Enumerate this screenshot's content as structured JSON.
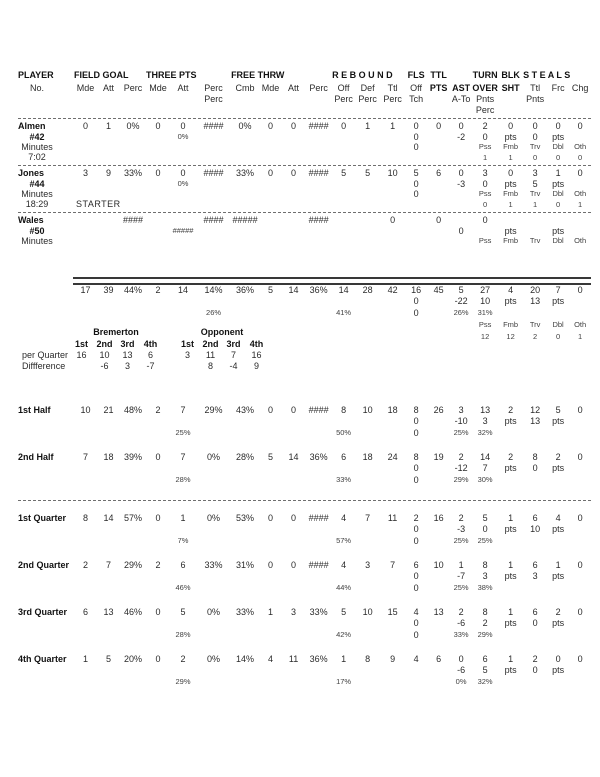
{
  "page": {
    "background": "#ffffff",
    "ink": "#2b2b2b"
  },
  "header": {
    "h1": [
      "PLAYER",
      "FIELD GOAL",
      "THREE PTS",
      "FREE THRW",
      "R E B O U N D",
      "FLS",
      "TTL",
      "",
      "TURN",
      "BLK",
      "S T E A L S"
    ]
  },
  "rows": [
    {
      "n": "header-line-2",
      "h": 12,
      "b": [
        "pts",
        "ast",
        "to",
        "blk"
      ],
      "c": {
        "label": "No.",
        "fgm": "Mde",
        "fga": "Att",
        "fgp": "Perc",
        "tpm": "Mde",
        "tpa": "Att",
        "tpp": "Perc",
        "cmb": "Cmb",
        "ftm": "Mde",
        "fta": "Att",
        "ftp": "Perc",
        "rbo": "Off",
        "rbd": "Def",
        "rbt": "Ttl",
        "fls": "Off",
        "pts": "PTS",
        "ast": "AST",
        "to": "OVER",
        "blk": "SHT",
        "st": "Ttl",
        "fr": "Frc",
        "ch": "Chg"
      }
    },
    {
      "n": "header-line-3",
      "h": 11,
      "c": {
        "tpp": "Perc",
        "rbo": "Perc",
        "rbd": "Perc",
        "rbt": "Perc",
        "fls": "Tch",
        "ast": "A-To",
        "to": "Pnts",
        "st": "Pnts"
      }
    },
    {
      "n": "header-line-4",
      "h": 11,
      "c": {
        "to": "Perc"
      }
    },
    {
      "sep": "dashed",
      "n": "divider-header"
    },
    {
      "n": "almen-line-1",
      "h": 11,
      "lb": 1,
      "lleft": 1,
      "c": {
        "label": "Almen",
        "fgm": "0",
        "fga": "1",
        "fgp": "0%",
        "tpm": "0",
        "tpa": "0",
        "tpp": "####",
        "cmb": "0%",
        "ftm": "0",
        "fta": "0",
        "ftp": "####",
        "rbo": "0",
        "rbd": "1",
        "rbt": "1",
        "fls": "0",
        "pts": "0",
        "ast": "0",
        "to": "2",
        "blk": "0",
        "st": "0",
        "fr": "0",
        "ch": "0"
      }
    },
    {
      "n": "almen-line-2",
      "h": 10,
      "lb": 1,
      "s": [
        "tpa"
      ],
      "c": {
        "label": "#42",
        "tpa": "0%",
        "fls": "0",
        "ast": "-2",
        "to": "0",
        "blk": "pts",
        "st": "0",
        "fr": "pts"
      }
    },
    {
      "n": "almen-line-3",
      "h": 10,
      "s": [
        "to",
        "blk",
        "st",
        "fr",
        "ch"
      ],
      "c": {
        "label": "Minutes",
        "fls": "0",
        "to": "Pss",
        "blk": "Fmb",
        "st": "Trv",
        "fr": "Dbl",
        "ch": "Oth"
      }
    },
    {
      "n": "almen-line-4",
      "h": 11,
      "s": [
        "to",
        "blk",
        "st",
        "fr",
        "ch"
      ],
      "c": {
        "label": "7:02",
        "to": "1",
        "blk": "1",
        "st": "0",
        "fr": "0",
        "ch": "0"
      }
    },
    {
      "sep": "dashed",
      "n": "divider-almen"
    },
    {
      "n": "jones-line-1",
      "h": 11,
      "lb": 1,
      "lleft": 1,
      "c": {
        "label": "Jones",
        "fgm": "3",
        "fga": "9",
        "fgp": "33%",
        "tpm": "0",
        "tpa": "0",
        "tpp": "####",
        "cmb": "33%",
        "ftm": "0",
        "fta": "0",
        "ftp": "####",
        "rbo": "5",
        "rbd": "5",
        "rbt": "10",
        "fls": "5",
        "pts": "6",
        "ast": "0",
        "to": "3",
        "blk": "0",
        "st": "3",
        "fr": "1",
        "ch": "0"
      }
    },
    {
      "n": "jones-line-2",
      "h": 10,
      "lb": 1,
      "s": [
        "tpa"
      ],
      "c": {
        "label": "#44",
        "tpa": "0%",
        "fls": "0",
        "ast": "-3",
        "to": "0",
        "blk": "pts",
        "st": "5",
        "fr": "pts"
      }
    },
    {
      "n": "jones-line-3",
      "h": 10,
      "s": [
        "to",
        "blk",
        "st",
        "fr",
        "ch"
      ],
      "c": {
        "label": "Minutes",
        "fls": "0",
        "to": "Pss",
        "blk": "Fmb",
        "st": "Trv",
        "fr": "Dbl",
        "ch": "Oth"
      }
    },
    {
      "n": "jones-line-4",
      "h": 11,
      "ln": [
        "fgm"
      ],
      "s": [
        "to",
        "blk",
        "st",
        "fr",
        "ch"
      ],
      "c": {
        "label": "18:29",
        "fgm": "STARTER",
        "to": "0",
        "blk": "1",
        "st": "1",
        "fr": "0",
        "ch": "1"
      }
    },
    {
      "sep": "dashed",
      "n": "divider-jones"
    },
    {
      "n": "wales-line-1",
      "h": 11,
      "lb": 1,
      "lleft": 1,
      "c": {
        "label": "Wales",
        "fgp": "####",
        "tpp": "####",
        "cmb": "#####",
        "ftp": "####",
        "rbt": "0",
        "pts": "0",
        "to": "0"
      }
    },
    {
      "n": "wales-line-2",
      "h": 10,
      "lb": 1,
      "s": [
        "tpa"
      ],
      "c": {
        "label": "#50",
        "tpa": "#####",
        "ast": "0",
        "blk": "pts",
        "fr": "pts"
      }
    },
    {
      "n": "wales-line-3",
      "h": 10,
      "s": [
        "to",
        "blk",
        "st",
        "fr",
        "ch"
      ],
      "c": {
        "label": "Minutes",
        "to": "Pss",
        "blk": "Fmb",
        "st": "Trv",
        "fr": "Dbl",
        "ch": "Oth"
      }
    },
    {
      "n": "wales-line-4",
      "h": 11,
      "c": {}
    },
    {
      "gap": 20,
      "n": "spacer-before-totals"
    },
    {
      "sep": "double",
      "n": "divider-totals"
    },
    {
      "n": "totals-line-1",
      "h": 11,
      "c": {
        "fgm": "17",
        "fga": "39",
        "fgp": "44%",
        "tpm": "2",
        "tpa": "14",
        "tpp": "14%",
        "cmb": "36%",
        "ftm": "5",
        "fta": "14",
        "ftp": "36%",
        "rbo": "14",
        "rbd": "28",
        "rbt": "42",
        "fls": "16",
        "pts": "45",
        "ast": "5",
        "to": "27",
        "blk": "4",
        "st": "20",
        "fr": "7",
        "ch": "0"
      }
    },
    {
      "n": "totals-line-2",
      "h": 11,
      "c": {
        "fls": "0",
        "ast": "-22",
        "to": "10",
        "blk": "pts",
        "st": "13",
        "fr": "pts"
      }
    },
    {
      "n": "totals-line-3",
      "h": 12,
      "s": [
        "tpp",
        "rbo",
        "ast",
        "to"
      ],
      "c": {
        "tpp": "26%",
        "rbo": "41%",
        "fls": "0",
        "ast": "26%",
        "to": "31%"
      }
    },
    {
      "n": "totals-line-4",
      "h": 12,
      "s": [
        "to",
        "blk",
        "st",
        "fr",
        "ch"
      ],
      "c": {
        "to": "Pss",
        "blk": "Fmb",
        "st": "Trv",
        "fr": "Dbl",
        "ch": "Oth"
      }
    },
    {
      "n": "totals-line-5",
      "h": 11,
      "s": [
        "to",
        "blk",
        "st",
        "fr",
        "ch"
      ],
      "c": {
        "to": "12",
        "blk": "12",
        "st": "2",
        "fr": "0",
        "ch": "1"
      }
    },
    {
      "gap": 63,
      "n": "spacer-quarter-scores"
    },
    {
      "n": "first-half-line-1",
      "h": 11,
      "lb": 1,
      "lleft": 1,
      "c": {
        "label": "1st Half",
        "fgm": "10",
        "fga": "21",
        "fgp": "48%",
        "tpm": "2",
        "tpa": "7",
        "tpp": "29%",
        "cmb": "43%",
        "ftm": "0",
        "fta": "0",
        "ftp": "####",
        "rbo": "8",
        "rbd": "10",
        "rbt": "18",
        "fls": "8",
        "pts": "26",
        "ast": "3",
        "to": "13",
        "blk": "2",
        "st": "12",
        "fr": "5",
        "ch": "0"
      }
    },
    {
      "n": "first-half-line-2",
      "h": 11,
      "c": {
        "fls": "0",
        "ast": "-10",
        "to": "3",
        "blk": "pts",
        "st": "13",
        "fr": "pts"
      }
    },
    {
      "n": "first-half-line-3",
      "h": 12,
      "s": [
        "tpa",
        "rbo",
        "ast",
        "to"
      ],
      "c": {
        "tpa": "25%",
        "rbo": "50%",
        "fls": "0",
        "ast": "25%",
        "to": "32%"
      }
    },
    {
      "gap": 13,
      "n": "spacer-halves"
    },
    {
      "n": "second-half-line-1",
      "h": 11,
      "lb": 1,
      "lleft": 1,
      "c": {
        "label": "2nd Half",
        "fgm": "7",
        "fga": "18",
        "fgp": "39%",
        "tpm": "0",
        "tpa": "7",
        "tpp": "0%",
        "cmb": "28%",
        "ftm": "5",
        "fta": "14",
        "ftp": "36%",
        "rbo": "6",
        "rbd": "18",
        "rbt": "24",
        "fls": "8",
        "pts": "19",
        "ast": "2",
        "to": "14",
        "blk": "2",
        "st": "8",
        "fr": "2",
        "ch": "0"
      }
    },
    {
      "n": "second-half-line-2",
      "h": 11,
      "c": {
        "fls": "0",
        "ast": "-12",
        "to": "7",
        "blk": "pts",
        "st": "0",
        "fr": "pts"
      }
    },
    {
      "n": "second-half-line-3",
      "h": 12,
      "s": [
        "tpa",
        "rbo",
        "ast",
        "to"
      ],
      "c": {
        "tpa": "28%",
        "rbo": "33%",
        "fls": "0",
        "ast": "29%",
        "to": "30%"
      }
    },
    {
      "gap": 12,
      "n": "spacer-after-halves"
    },
    {
      "sep": "dashed",
      "n": "divider-quarters"
    },
    {
      "gap": 10,
      "n": "spacer-before-q1"
    },
    {
      "n": "q1-line-1",
      "h": 11,
      "lb": 1,
      "lleft": 1,
      "c": {
        "label": "1st Quarter",
        "fgm": "8",
        "fga": "14",
        "fgp": "57%",
        "tpm": "0",
        "tpa": "1",
        "tpp": "0%",
        "cmb": "53%",
        "ftm": "0",
        "fta": "0",
        "ftp": "####",
        "rbo": "4",
        "rbd": "7",
        "rbt": "11",
        "fls": "2",
        "pts": "16",
        "ast": "2",
        "to": "5",
        "blk": "1",
        "st": "6",
        "fr": "4",
        "ch": "0"
      }
    },
    {
      "n": "q1-line-2",
      "h": 11,
      "c": {
        "fls": "0",
        "ast": "-3",
        "to": "0",
        "blk": "pts",
        "st": "10",
        "fr": "pts"
      }
    },
    {
      "n": "q1-line-3",
      "h": 12,
      "s": [
        "tpa",
        "rbo",
        "ast",
        "to"
      ],
      "c": {
        "tpa": "7%",
        "rbo": "57%",
        "fls": "0",
        "ast": "25%",
        "to": "25%"
      }
    },
    {
      "gap": 13,
      "n": "spacer-q1"
    },
    {
      "n": "q2-line-1",
      "h": 11,
      "lb": 1,
      "lleft": 1,
      "c": {
        "label": "2nd Quarter",
        "fgm": "2",
        "fga": "7",
        "fgp": "29%",
        "tpm": "2",
        "tpa": "6",
        "tpp": "33%",
        "cmb": "31%",
        "ftm": "0",
        "fta": "0",
        "ftp": "####",
        "rbo": "4",
        "rbd": "3",
        "rbt": "7",
        "fls": "6",
        "pts": "10",
        "ast": "1",
        "to": "8",
        "blk": "1",
        "st": "6",
        "fr": "1",
        "ch": "0"
      }
    },
    {
      "n": "q2-line-2",
      "h": 11,
      "c": {
        "fls": "0",
        "ast": "-7",
        "to": "3",
        "blk": "pts",
        "st": "3",
        "fr": "pts"
      }
    },
    {
      "n": "q2-line-3",
      "h": 12,
      "s": [
        "tpa",
        "rbo",
        "ast",
        "to"
      ],
      "c": {
        "tpa": "46%",
        "rbo": "44%",
        "fls": "0",
        "ast": "25%",
        "to": "38%"
      }
    },
    {
      "gap": 13,
      "n": "spacer-q2"
    },
    {
      "n": "q3-line-1",
      "h": 11,
      "lb": 1,
      "lleft": 1,
      "c": {
        "label": "3rd Quarter",
        "fgm": "6",
        "fga": "13",
        "fgp": "46%",
        "tpm": "0",
        "tpa": "5",
        "tpp": "0%",
        "cmb": "33%",
        "ftm": "1",
        "fta": "3",
        "ftp": "33%",
        "rbo": "5",
        "rbd": "10",
        "rbt": "15",
        "fls": "4",
        "pts": "13",
        "ast": "2",
        "to": "8",
        "blk": "1",
        "st": "6",
        "fr": "2",
        "ch": "0"
      }
    },
    {
      "n": "q3-line-2",
      "h": 11,
      "c": {
        "fls": "0",
        "ast": "-6",
        "to": "2",
        "blk": "pts",
        "st": "0",
        "fr": "pts"
      }
    },
    {
      "n": "q3-line-3",
      "h": 12,
      "s": [
        "tpa",
        "rbo",
        "ast",
        "to"
      ],
      "c": {
        "tpa": "28%",
        "rbo": "42%",
        "fls": "0",
        "ast": "33%",
        "to": "29%"
      }
    },
    {
      "gap": 13,
      "n": "spacer-q3"
    },
    {
      "n": "q4-line-1",
      "h": 11,
      "lb": 1,
      "lleft": 1,
      "c": {
        "label": "4th Quarter",
        "fgm": "1",
        "fga": "5",
        "fgp": "20%",
        "tpm": "0",
        "tpa": "2",
        "tpp": "0%",
        "cmb": "14%",
        "ftm": "4",
        "fta": "11",
        "ftp": "36%",
        "rbo": "1",
        "rbd": "8",
        "rbt": "9",
        "fls": "4",
        "pts": "6",
        "ast": "0",
        "to": "6",
        "blk": "1",
        "st": "2",
        "fr": "0",
        "ch": "0"
      }
    },
    {
      "n": "q4-line-2",
      "h": 11,
      "c": {
        "ast": "-6",
        "to": "5",
        "blk": "pts",
        "st": "0",
        "fr": "pts"
      }
    },
    {
      "n": "q4-line-3",
      "h": 12,
      "s": [
        "tpa",
        "rbo",
        "ast",
        "to"
      ],
      "c": {
        "tpa": "29%",
        "rbo": "17%",
        "ast": "0%",
        "to": "32%"
      }
    }
  ],
  "quarter_scores": {
    "team1": "Bremerton",
    "team2": "Opponent",
    "cols": [
      "1st",
      "2nd",
      "3rd",
      "4th"
    ],
    "per_quarter_label": "per Quarter",
    "difference_label": "Diffference",
    "t1_pq": [
      "16",
      "10",
      "13",
      "6"
    ],
    "t1_diff": [
      "",
      "-6",
      "3",
      "-7"
    ],
    "t2_pq": [
      "3",
      "11",
      "7",
      "16"
    ],
    "t2_diff": [
      "",
      "8",
      "-4",
      "9"
    ]
  }
}
